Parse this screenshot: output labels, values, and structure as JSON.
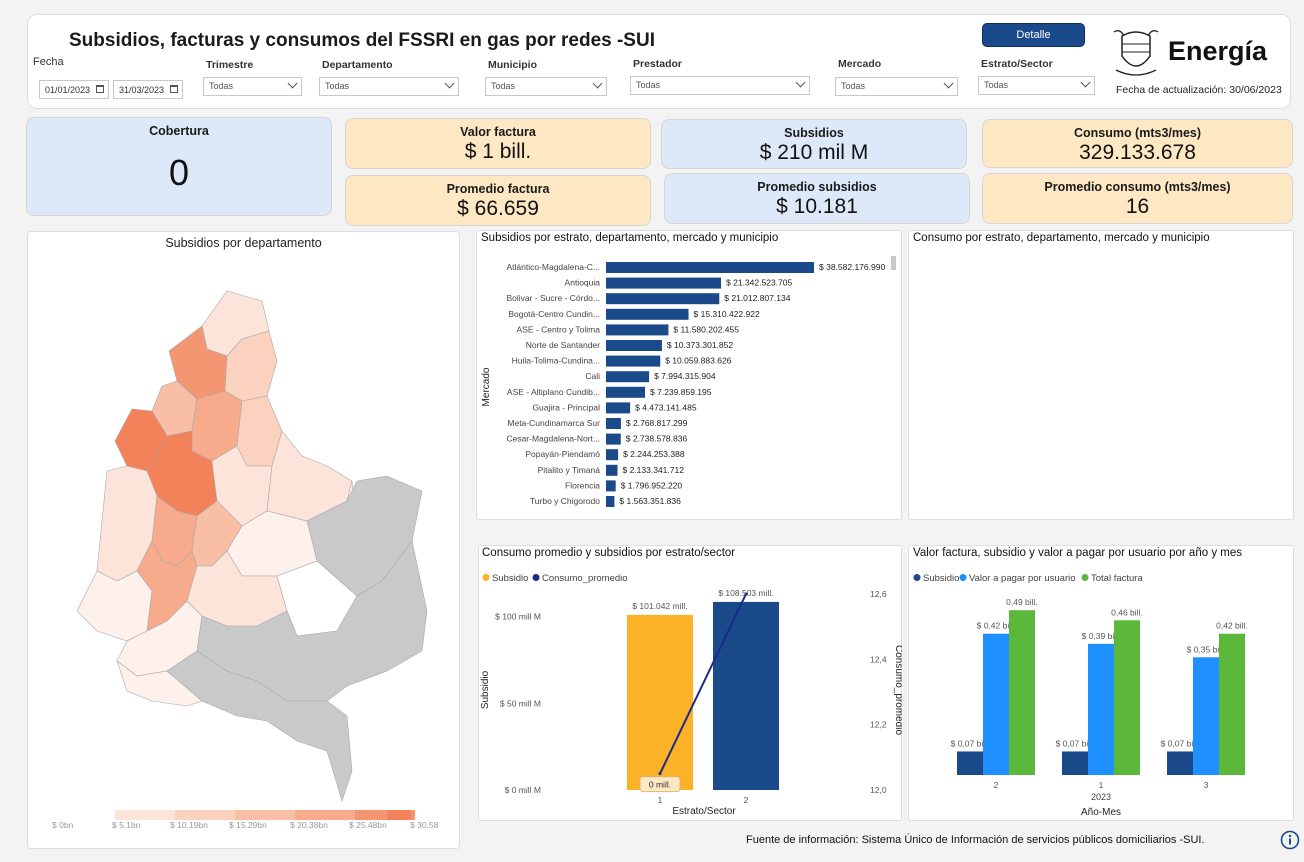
{
  "header": {
    "title": "Subsidios, facturas y consumos del FSSRI en gas por redes -SUI",
    "detail_button": "Detalle",
    "brand": "Energía",
    "updated": "Fecha de actualización: 30/06/2023",
    "fecha_label": "Fecha",
    "date_from": "01/01/2023",
    "date_to": "31/03/2023",
    "filters": [
      {
        "label": "Trimestre",
        "value": "Todas"
      },
      {
        "label": "Departamento",
        "value": "Todas"
      },
      {
        "label": "Municipio",
        "value": "Todas"
      },
      {
        "label": "Prestador",
        "value": "Todas"
      },
      {
        "label": "Mercado",
        "value": "Todas"
      },
      {
        "label": "Estrato/Sector",
        "value": "Todas"
      }
    ]
  },
  "kpis": {
    "cobertura": {
      "label": "Cobertura",
      "value": "0"
    },
    "valor_factura": {
      "label": "Valor factura",
      "value": "$ 1 bill."
    },
    "promedio_factura": {
      "label": "Promedio factura",
      "value": "$ 66.659"
    },
    "subsidios": {
      "label": "Subsidios",
      "value": "$ 210 mil M"
    },
    "promedio_subsidios": {
      "label": "Promedio subsidios",
      "value": "$ 10.181"
    },
    "consumo": {
      "label": "Consumo (mts3/mes)",
      "value": "329.133.678"
    },
    "promedio_consumo": {
      "label": "Promedio consumo (mts3/mes)",
      "value": "16"
    }
  },
  "map": {
    "title": "Subsidios por departamento",
    "legend_labels": [
      "$ 0bn",
      "$ 5.1bn",
      "$ 10.19bn",
      "$ 15.29bn",
      "$ 20.38bn",
      "$ 25.48bn",
      "$ 30.58"
    ],
    "colors": [
      "#fde4da",
      "#fbd2bf",
      "#f9bea6",
      "#f7aa8c",
      "#f59673",
      "#f3825a"
    ]
  },
  "consumo_panel": {
    "title": "Consumo por estrato, departamento, mercado y municipio"
  },
  "footer": {
    "source": "Fuente de información: Sistema Único de Información de servicios públicos domiciliarios -SUI."
  },
  "chart_data": [
    {
      "type": "bar",
      "title": "Subsidios por estrato, departamento, mercado y municipio",
      "ylabel": "Mercado",
      "orientation": "horizontal",
      "categories": [
        "Atlántico-Magdalena-C...",
        "Antioquia",
        "Bolivar - Sucre - Córdo...",
        "Bogotá-Centro Cundin...",
        "ASE - Centro y Tolima",
        "Norte de Santander",
        "Huila-Tolima-Cundina...",
        "Cali",
        "ASE - Altiplano Cundib...",
        "Guajira - Principal",
        "Meta-Cundinamarca Sur",
        "Cesar-Magdalena-Nort...",
        "Popayán-Piendamó",
        "Pitalito y Timaná",
        "Florencia",
        "Turbo y Chigorodo"
      ],
      "values": [
        38582176990,
        21342523705,
        21012807134,
        15310422922,
        11580202455,
        10373301852,
        10059883626,
        7994315904,
        7239859195,
        4473141485,
        2768817299,
        2738578836,
        2244253388,
        2133341712,
        1796952220,
        1563351836
      ],
      "labels": [
        "$ 38.582.176.990",
        "$ 21.342.523.705",
        "$ 21.012.807.134",
        "$ 15.310.422.922",
        "$ 11.580.202.455",
        "$ 10.373.301.852",
        "$ 10.059.883.626",
        "$ 7.994.315.904",
        "$ 7.239.859.195",
        "$ 4.473.141.485",
        "$ 2.768.817.299",
        "$ 2.738.578.836",
        "$ 2.244.253.388",
        "$ 2.133.341.712",
        "$ 1.796.952.220",
        "$ 1.563.351.836"
      ],
      "color": "#1a4a8a"
    },
    {
      "type": "bar",
      "title": "Consumo promedio y subsidios por estrato/sector",
      "xlabel": "Estrato/Sector",
      "ylabel": "Subsidio",
      "y2label": "Consumo_promedio",
      "categories": [
        "1",
        "2"
      ],
      "series": [
        {
          "name": "Subsidio",
          "type": "bar",
          "values": [
            101042,
            108503
          ],
          "labels": [
            "$ 101.042 mill.",
            "$ 108.503 mill."
          ],
          "colors": [
            "#fbb227",
            "#1a4a8a"
          ]
        },
        {
          "name": "Consumo_promedio",
          "type": "line",
          "values": [
            12.05,
            12.6
          ],
          "labels": [
            "0 mill.",
            ""
          ],
          "color": "#1a2a8a"
        }
      ],
      "yticks": [
        "$ 0 mill M",
        "$ 50 mill M",
        "$ 100 mill M"
      ],
      "ytick_values": [
        0,
        50000,
        100000
      ],
      "y2ticks": [
        "12,0",
        "12,2",
        "12,4",
        "12,6"
      ],
      "y2tick_values": [
        12.0,
        12.2,
        12.4,
        12.6
      ],
      "ylim": [
        0,
        120000
      ],
      "y2lim": [
        12.0,
        12.6
      ],
      "legend": "top-left"
    },
    {
      "type": "bar",
      "title": "Valor factura, subsidio y valor a pagar por usuario por año y mes",
      "xlabel": "Año-Mes",
      "year_label": "2023",
      "categories": [
        "2",
        "1",
        "3"
      ],
      "series": [
        {
          "name": "Subsidio",
          "values": [
            0.07,
            0.07,
            0.07
          ],
          "labels": [
            "$ 0,07 bill.",
            "$ 0,07 bill.",
            "$ 0,07 bill."
          ],
          "color": "#1a4a8a"
        },
        {
          "name": "Valor a pagar por usuario",
          "values": [
            0.42,
            0.39,
            0.35
          ],
          "labels": [
            "$ 0,42 bill.",
            "$ 0,39 bill.",
            "$ 0,35 bill."
          ],
          "color": "#1e90ff"
        },
        {
          "name": "Total factura",
          "values": [
            0.49,
            0.46,
            0.42
          ],
          "labels": [
            "0,49 bill.",
            "0,46 bill.",
            "0,42 bill."
          ],
          "color": "#5cb83a"
        }
      ],
      "ylim": [
        0,
        0.55
      ],
      "legend": "top-left"
    }
  ]
}
